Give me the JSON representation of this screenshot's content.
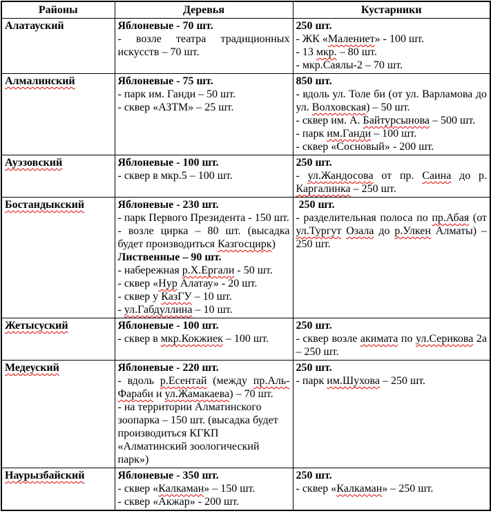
{
  "table": {
    "headers": [
      "Районы",
      "Деревья",
      "Кустарники"
    ],
    "rows": [
      {
        "district": {
          "t": "Алатауский",
          "b": 1
        },
        "trees": [
          {
            "t": "Яблоневые - 70 шт.",
            "b": 1
          },
          {
            "t": "- возле театра традиционных искусств – 70 шт."
          }
        ],
        "shrubs": [
          {
            "t": "250 шт.",
            "b": 1
          },
          {
            "t": "- ЖК «Малениет» - 100 шт.",
            "m": [
              "Малениет"
            ]
          },
          {
            "t": "- 13 мкр. – 80 шт.",
            "m": [
              "мкр."
            ]
          },
          {
            "t": "- мкр.Саялы-2 – 70 шт."
          }
        ]
      },
      {
        "district": {
          "t": "Алмалинский",
          "b": 1,
          "m": [
            "Алмалинский"
          ]
        },
        "trees": [
          {
            "t": "Яблоневые - 75 шт.",
            "b": 1
          },
          {
            "t": "- парк им. Ганди – 50 шт."
          },
          {
            "t": "- сквер «АЗТМ» – 25 шт."
          }
        ],
        "shrubs": [
          {
            "t": "850 шт.",
            "b": 1
          },
          {
            "t": "- вдоль ул. Толе би (от ул. Варламова до ул. Волховская) – 50 шт.",
            "m": [
              "Волховская"
            ]
          },
          {
            "t": "- сквер им. А. Байтурсынова – 500 шт.",
            "m": [
              "Байтурсынова"
            ]
          },
          {
            "t": "- парк им.Ганди – 100 шт.",
            "m": [
              "им.Ганди"
            ]
          },
          {
            "t": "- сквер «Сосновый» - 200 шт."
          }
        ]
      },
      {
        "district": {
          "t": "Ауэзовский",
          "b": 1,
          "m": [
            "Ауэзовский"
          ]
        },
        "trees": [
          {
            "t": "Яблоневые - 100 шт.",
            "b": 1
          },
          {
            "t": "- сквер в мкр.5 – 100 шт."
          }
        ],
        "shrubs": [
          {
            "t": "250 шт.",
            "b": 1
          },
          {
            "t": "- ул.Жандосова от пр. Саина до р. Каргалинка – 250 шт.",
            "m": [
              "ул.Жандосова",
              "Саина",
              "Каргалинка"
            ]
          }
        ]
      },
      {
        "district": {
          "t": "Бостандыкский",
          "b": 1,
          "m": [
            "Бостандыкский"
          ]
        },
        "trees": [
          {
            "t": "Яблоневые - 230 шт.",
            "b": 1
          },
          {
            "t": "- парк Первого Президента - 150 шт."
          },
          {
            "t": "- возле цирка – 80 шт. (высадка будет производиться Казгосцирк)",
            "m": [
              "Казгосцирк"
            ]
          },
          {
            "t": "Лиственные – 90 шт.",
            "b": 1
          },
          {
            "t": "- набережная р.Х.Ергали - 50 шт.",
            "m": [
              "р.Х.Ергали"
            ]
          },
          {
            "t": "- сквер «Нур Алатау» - 20 шт.",
            "m": [
              "Нур"
            ]
          },
          {
            "t": "- сквер у КазГУ – 10 шт.",
            "m": [
              "КазГУ"
            ]
          },
          {
            "t": "- ул.Габдуллина – 10 шт.",
            "m": [
              "ул.Габдуллина"
            ]
          }
        ],
        "shrubs": [
          {
            "t": " 250 шт.",
            "b": 1
          },
          {
            "t": "- разделительная полоса по пр.Абая (от ул.Тургут Озала до р.Улкен Алматы) – 250 шт.",
            "m": [
              "пр.Абая",
              "ул.Тургут",
              "Озала",
              "р.Улкен"
            ]
          }
        ]
      },
      {
        "district": {
          "t": "Жетысуский",
          "b": 1,
          "m": [
            "Жетысуский"
          ]
        },
        "trees": [
          {
            "t": "Яблоневые - 100 шт.",
            "b": 1
          },
          {
            "t": "- сквер в мкр.Кокжиек – 100 шт.",
            "m": [
              "мкр.Кокжиек"
            ]
          }
        ],
        "shrubs": [
          {
            "t": "250 шт.",
            "b": 1
          },
          {
            "t": "- сквер возле акимата по ул.Серикова 2а – 250 шт.",
            "m": [
              "акимата",
              "ул.Серикова"
            ]
          }
        ]
      },
      {
        "district": {
          "t": "Медеуский",
          "b": 1,
          "m": [
            "Медеуский"
          ]
        },
        "trees": [
          {
            "t": "Яблоневые - 220 шт.",
            "b": 1
          },
          {
            "t": "- вдоль р.Есентай (между пр.Аль-Фараби и ул.Жамакаева) – 70 шт.",
            "m": [
              "р.Есентай",
              "пр.Аль-Фараби",
              "ул.Жамакаева"
            ]
          },
          {
            "t": "- на территории Алматинского зоопарка – 150 шт. (высадка будет производиться КГКП «Алматинский зоологический парк»)",
            "j": false
          }
        ],
        "shrubs": [
          {
            "t": "250 шт.",
            "b": 1
          },
          {
            "t": "- парк им.Шухова – 250 шт.",
            "m": [
              "им.Шухова"
            ]
          }
        ]
      },
      {
        "district": {
          "t": "Наурызбайский",
          "b": 1,
          "m": [
            "Наурызбайский"
          ]
        },
        "trees": [
          {
            "t": "Яблоневые - 350 шт.",
            "b": 1
          },
          {
            "t": "- сквер «Калкаман» – 150 шт.",
            "m": [
              "Калкаман"
            ]
          },
          {
            "t": "- сквер «Акжар» - 200 шт."
          }
        ],
        "shrubs": [
          {
            "t": "250 шт.",
            "b": 1
          },
          {
            "t": "- сквер «Калкаман» – 250 шт.",
            "m": [
              "Калкаман"
            ]
          }
        ]
      }
    ]
  },
  "colors": {
    "border": "#000000",
    "text": "#000000",
    "spellcheck_underline": "#e00000"
  }
}
